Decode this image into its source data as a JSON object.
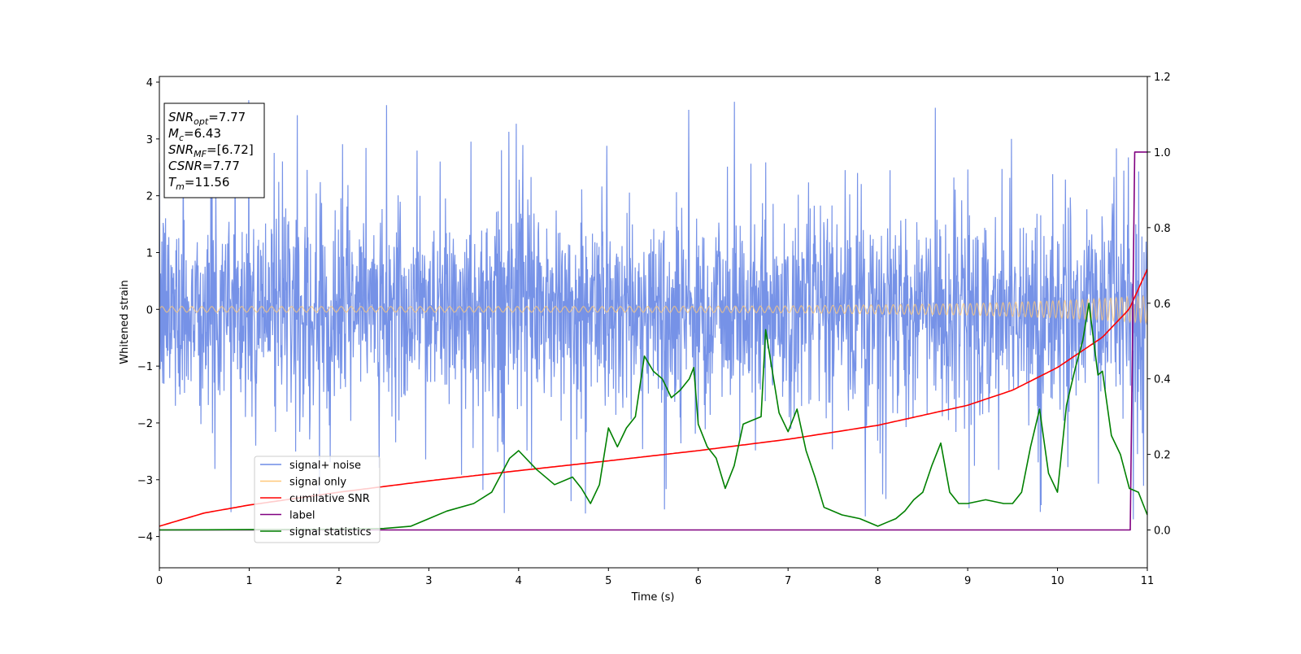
{
  "chart_data": {
    "type": "line",
    "xlabel": "Time (s)",
    "ylabel": "Whitened strain",
    "xlim": [
      0,
      11
    ],
    "ylim_left": [
      -4.55,
      4.1
    ],
    "ylim_right": [
      -0.1,
      1.2
    ],
    "x_ticks": [
      0,
      1,
      2,
      3,
      4,
      5,
      6,
      7,
      8,
      9,
      10,
      11
    ],
    "y_ticks_left": [
      -4,
      -3,
      -2,
      -1,
      0,
      1,
      2,
      3,
      4
    ],
    "y_ticks_right": [
      0.0,
      0.2,
      0.4,
      0.6,
      0.8,
      1.0,
      1.2
    ],
    "grid": false,
    "legend_position": "lower-left",
    "info_box": {
      "position": "top-left",
      "lines": [
        {
          "sym": "SNR",
          "sub": "opt",
          "val": "=7.77"
        },
        {
          "sym": "M",
          "sub": "c",
          "val": "=6.43"
        },
        {
          "sym": "SNR",
          "sub": "MF",
          "val": "=[6.72]"
        },
        {
          "sym": "CSNR",
          "sub": "",
          "val": "=7.77"
        },
        {
          "sym": "T",
          "sub": "m",
          "val": "=11.56"
        }
      ]
    },
    "series": [
      {
        "name": "signal+ noise",
        "color": "#6f8ce6",
        "axis": "left",
        "style": "noise",
        "noise_band": {
          "typical_amplitude": 1.5,
          "max_positive": 3.7,
          "max_negative": -4.1
        }
      },
      {
        "name": "signal only",
        "color": "#ffc87a",
        "axis": "left",
        "style": "chirp",
        "envelope": {
          "x": [
            0,
            5,
            7,
            9,
            10,
            10.5,
            11
          ],
          "amp": [
            0.05,
            0.05,
            0.06,
            0.1,
            0.15,
            0.19,
            0.24
          ]
        }
      },
      {
        "name": "cumilative SNR",
        "color": "#ff0000",
        "axis": "right",
        "x": [
          0,
          0.5,
          1,
          2,
          3,
          4,
          5,
          6,
          7,
          8,
          9,
          9.5,
          10,
          10.5,
          10.8,
          11
        ],
        "y": [
          0.01,
          0.045,
          0.066,
          0.1,
          0.13,
          0.157,
          0.183,
          0.21,
          0.24,
          0.277,
          0.33,
          0.37,
          0.43,
          0.51,
          0.585,
          0.69
        ]
      },
      {
        "name": "label",
        "color": "#800080",
        "axis": "right",
        "x": [
          0,
          10.81,
          10.86,
          11
        ],
        "y": [
          0.0,
          0.0,
          1.0,
          1.0
        ]
      },
      {
        "name": "signal statistics",
        "color": "#008000",
        "axis": "right",
        "x": [
          0,
          1,
          2,
          2.5,
          2.8,
          3.0,
          3.2,
          3.5,
          3.7,
          3.9,
          4.0,
          4.2,
          4.4,
          4.6,
          4.7,
          4.8,
          4.9,
          5.0,
          5.1,
          5.2,
          5.3,
          5.4,
          5.5,
          5.6,
          5.7,
          5.8,
          5.9,
          5.95,
          6.0,
          6.1,
          6.2,
          6.3,
          6.4,
          6.5,
          6.6,
          6.7,
          6.75,
          6.9,
          7.0,
          7.1,
          7.2,
          7.3,
          7.4,
          7.6,
          7.8,
          8.0,
          8.1,
          8.2,
          8.3,
          8.4,
          8.5,
          8.6,
          8.7,
          8.8,
          8.9,
          9.0,
          9.2,
          9.4,
          9.5,
          9.6,
          9.7,
          9.8,
          9.9,
          10.0,
          10.1,
          10.2,
          10.28,
          10.35,
          10.45,
          10.5,
          10.6,
          10.7,
          10.8,
          10.9,
          11.0
        ],
        "y": [
          0.0,
          0.001,
          0.002,
          0.004,
          0.01,
          0.03,
          0.05,
          0.07,
          0.1,
          0.19,
          0.21,
          0.16,
          0.12,
          0.14,
          0.11,
          0.07,
          0.12,
          0.27,
          0.22,
          0.27,
          0.3,
          0.46,
          0.42,
          0.4,
          0.35,
          0.37,
          0.4,
          0.43,
          0.28,
          0.22,
          0.19,
          0.11,
          0.17,
          0.28,
          0.29,
          0.3,
          0.53,
          0.31,
          0.26,
          0.32,
          0.21,
          0.14,
          0.06,
          0.04,
          0.03,
          0.01,
          0.02,
          0.03,
          0.05,
          0.08,
          0.1,
          0.17,
          0.23,
          0.1,
          0.07,
          0.07,
          0.08,
          0.07,
          0.07,
          0.1,
          0.22,
          0.32,
          0.15,
          0.1,
          0.33,
          0.43,
          0.5,
          0.6,
          0.41,
          0.42,
          0.25,
          0.2,
          0.11,
          0.1,
          0.04
        ]
      }
    ]
  }
}
